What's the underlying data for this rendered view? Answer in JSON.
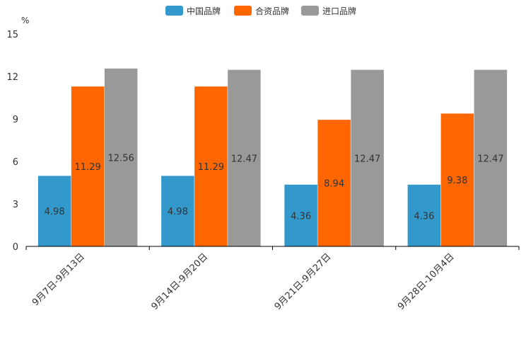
{
  "chart_data": {
    "type": "bar",
    "title": "",
    "xlabel": "",
    "ylabel": "%",
    "ylim": [
      0,
      15
    ],
    "yticks": [
      0,
      3,
      6,
      9,
      12,
      15
    ],
    "grid": false,
    "legend_position": "top-center",
    "categories": [
      "9月7日-9月13日",
      "9月14日-9月20日",
      "9月21日-9月27日",
      "9月28日-10月4日"
    ],
    "series": [
      {
        "name": "中国品牌",
        "color": "#3399cc",
        "values": [
          4.98,
          4.98,
          4.36,
          4.36
        ]
      },
      {
        "name": "合资品牌",
        "color": "#ff6600",
        "values": [
          11.29,
          11.29,
          8.94,
          9.38
        ]
      },
      {
        "name": "进口品牌",
        "color": "#999999",
        "values": [
          12.56,
          12.47,
          12.47,
          12.47
        ]
      }
    ]
  }
}
